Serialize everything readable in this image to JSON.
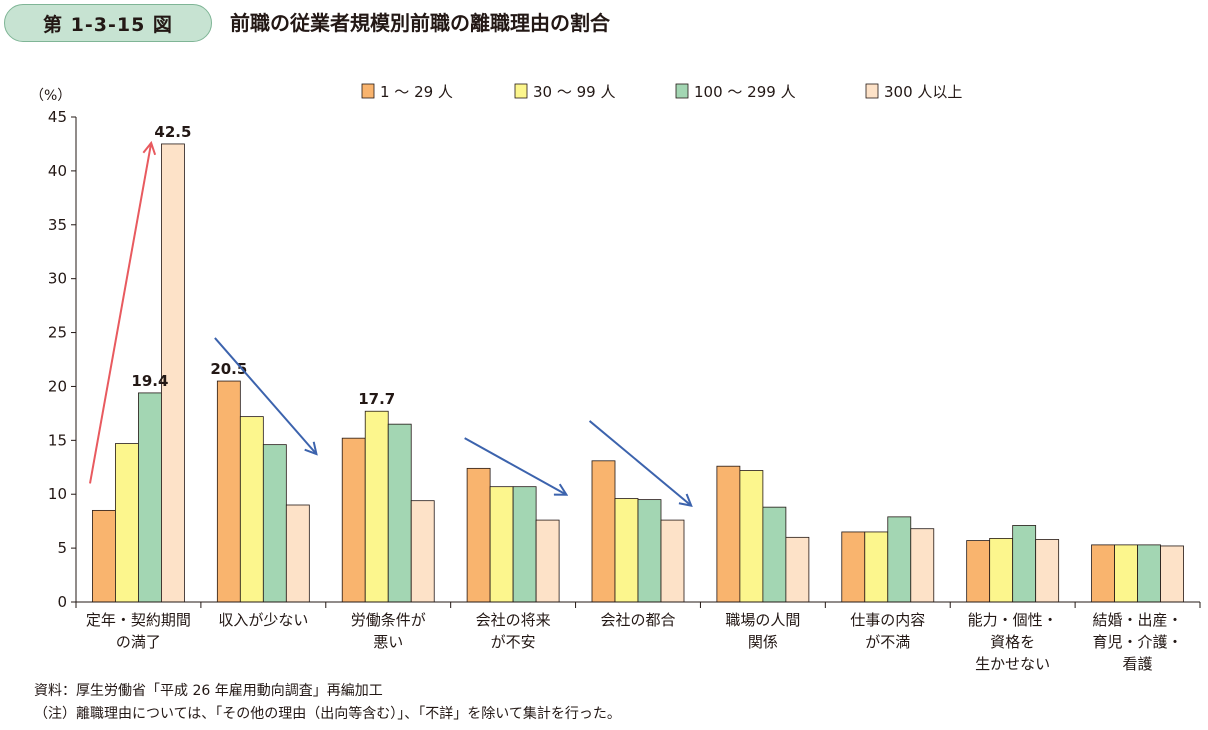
{
  "header": {
    "figure_number": "第 1-3-15 図",
    "title": "前職の従業者規模別前職の離職理由の割合"
  },
  "colors": {
    "series": [
      "#f9b46e",
      "#fcf68d",
      "#a3d6b3",
      "#fde2c8"
    ],
    "arrow_up": "#e85a5f",
    "arrow_down": "#3c63ad",
    "badge": "#c7e3d2"
  },
  "chart_data": {
    "type": "bar",
    "ylabel": "（%）",
    "ylim": [
      0,
      45
    ],
    "yticks": [
      "0",
      "5",
      "10",
      "15",
      "20",
      "25",
      "30",
      "35",
      "40",
      "45"
    ],
    "ytick_values": [
      0,
      5,
      10,
      15,
      20,
      25,
      30,
      35,
      40,
      45
    ],
    "legend_position": "top",
    "grid": false,
    "categories": [
      [
        "定年・契約期間",
        "の満了"
      ],
      [
        "収入が少ない"
      ],
      [
        "労働条件が",
        "悪い"
      ],
      [
        "会社の将来",
        "が不安"
      ],
      [
        "会社の都合"
      ],
      [
        "職場の人間",
        "関係"
      ],
      [
        "仕事の内容",
        "が不満"
      ],
      [
        "能力・個性・",
        "資格を",
        "生かせない"
      ],
      [
        "結婚・出産・",
        "育児・介護・",
        "看護"
      ]
    ],
    "series": [
      {
        "name": "1 〜 29 人",
        "values": [
          8.5,
          20.5,
          15.2,
          12.4,
          13.1,
          12.6,
          6.5,
          5.7,
          5.3
        ]
      },
      {
        "name": "30 〜 99 人",
        "values": [
          14.7,
          17.2,
          17.7,
          10.7,
          9.6,
          12.2,
          6.5,
          5.9,
          5.3
        ]
      },
      {
        "name": "100 〜 299 人",
        "values": [
          19.4,
          14.6,
          16.5,
          10.7,
          9.5,
          8.8,
          7.9,
          7.1,
          5.3
        ]
      },
      {
        "name": "300 人以上",
        "values": [
          42.5,
          9.0,
          9.4,
          7.6,
          7.6,
          6.0,
          6.8,
          5.8,
          5.2
        ]
      }
    ],
    "data_labels": [
      {
        "category": 0,
        "series": 2,
        "text": "19.4"
      },
      {
        "category": 0,
        "series": 3,
        "text": "42.5"
      },
      {
        "category": 1,
        "series": 0,
        "text": "20.5"
      },
      {
        "category": 2,
        "series": 1,
        "text": "17.7"
      }
    ],
    "trend_arrows": [
      {
        "category": 0,
        "direction": "up",
        "from_value": 11.0,
        "to_value": 42.5
      },
      {
        "category": 1,
        "direction": "down",
        "from_value": 24.5,
        "to_value": 13.8
      },
      {
        "category": 3,
        "direction": "down",
        "from_value": 15.2,
        "to_value": 10.0
      },
      {
        "category": 4,
        "direction": "down",
        "from_value": 16.8,
        "to_value": 9.0
      }
    ]
  },
  "footnotes": {
    "source": "資料：厚生労働省「平成 26 年雇用動向調査」再編加工",
    "note": "（注）離職理由については、「その他の理由（出向等含む）」、「不詳」を除いて集計を行った。"
  }
}
